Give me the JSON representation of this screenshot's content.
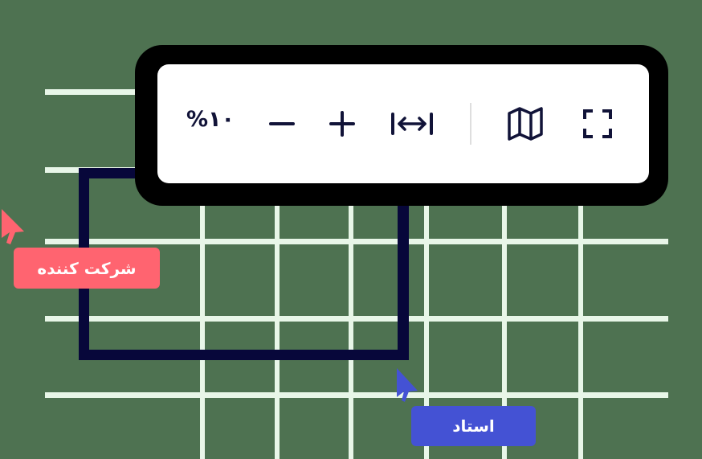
{
  "canvas": {
    "background_color": "#4e7251",
    "grid_color": "#e8f6e8",
    "selection_color": "#07073a"
  },
  "toolbar": {
    "zoom_level": "١٠%",
    "zoom_out_icon": "minus-icon",
    "zoom_in_icon": "plus-icon",
    "fit_width_icon": "fit-width-icon",
    "map_icon": "map-icon",
    "fullscreen_icon": "fullscreen-icon"
  },
  "cursors": {
    "collaborator": {
      "label": "شرکت کننده",
      "color": "#ff6470",
      "icon": "pointer-cursor-icon"
    },
    "teacher": {
      "label": "استاد",
      "color": "#4452d4",
      "icon": "pointer-cursor-icon"
    }
  }
}
